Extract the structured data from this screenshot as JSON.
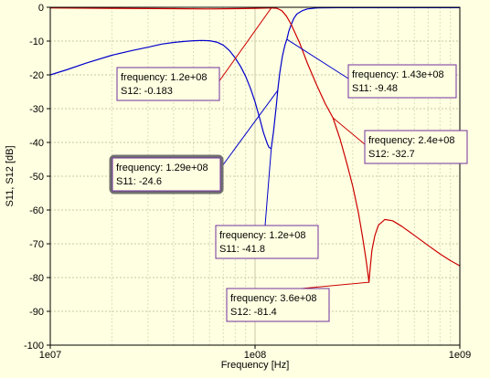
{
  "chart_data": {
    "type": "line",
    "xlabel": "Frequency [Hz]",
    "ylabel": "S11, S12 [dB]",
    "xscale": "log",
    "xlim": [
      10000000,
      1000000000
    ],
    "ylim": [
      -100,
      0
    ],
    "grid": true,
    "x_tick_labels": [
      "1e07",
      "1e08",
      "1e09"
    ],
    "y_ticks": [
      0,
      -10,
      -20,
      -30,
      -40,
      -50,
      -60,
      -70,
      -80,
      -90,
      -100
    ],
    "series": [
      {
        "name": "S11",
        "color": "#0000CC",
        "x": [
          10000000,
          12000000,
          15000000,
          20000000,
          25000000,
          30000000,
          35000000,
          40000000,
          45000000,
          50000000,
          55000000,
          60000000,
          65000000,
          70000000,
          75000000,
          80000000,
          85000000,
          90000000,
          95000000,
          100000000,
          105000000,
          110000000,
          115000000,
          117000000,
          120000000,
          123000000,
          127000000,
          129000000,
          132000000,
          136000000,
          140000000,
          143000000,
          146000000,
          150000000,
          155000000,
          160000000,
          170000000,
          180000000,
          200000000,
          250000000,
          300000000,
          400000000,
          500000000,
          700000000,
          1000000000
        ],
        "y": [
          -20,
          -18.5,
          -16.5,
          -14.2,
          -12.8,
          -11.8,
          -10.9,
          -10.4,
          -10.1,
          -9.9,
          -9.8,
          -9.9,
          -10.3,
          -11.2,
          -12.8,
          -15,
          -17.5,
          -20.5,
          -24,
          -28,
          -32.5,
          -37.2,
          -40.5,
          -41.5,
          -41.8,
          -37,
          -29,
          -24.6,
          -19.5,
          -14.5,
          -11.2,
          -9.48,
          -7.2,
          -5.2,
          -3.2,
          -2,
          -1,
          -0.5,
          -0.2,
          -0.1,
          -0.1,
          -0.1,
          -0.1,
          -0.1,
          -0.1
        ]
      },
      {
        "name": "S12",
        "color": "#CC0000",
        "x": [
          10000000,
          20000000,
          40000000,
          60000000,
          80000000,
          100000000,
          110000000,
          120000000,
          128000000,
          135000000,
          142000000,
          150000000,
          165000000,
          180000000,
          200000000,
          220000000,
          240000000,
          260000000,
          280000000,
          300000000,
          320000000,
          335000000,
          348000000,
          355000000,
          360000000,
          365000000,
          372000000,
          385000000,
          400000000,
          430000000,
          470000000,
          520000000,
          600000000,
          700000000,
          800000000,
          900000000,
          1000000000
        ],
        "y": [
          -0.2,
          -0.3,
          -0.4,
          -0.5,
          -0.4,
          -0.3,
          -0.25,
          -0.183,
          -0.3,
          -1,
          -2.5,
          -5,
          -10.5,
          -16.5,
          -23,
          -28.5,
          -32.7,
          -39,
          -46,
          -53,
          -61,
          -68,
          -74.5,
          -78.5,
          -81.4,
          -77,
          -72,
          -67.5,
          -64.5,
          -62.8,
          -63.2,
          -64.8,
          -67.5,
          -70.5,
          -73,
          -75,
          -76.5
        ]
      }
    ],
    "annotations": [
      {
        "lines": [
          "frequency: 1.2e+08",
          "S12: -0.183"
        ],
        "x": 120000000,
        "y": -0.183,
        "series": "S12"
      },
      {
        "lines": [
          "frequency: 1.43e+08",
          "S11: -9.48"
        ],
        "x": 143000000,
        "y": -9.48,
        "series": "S11"
      },
      {
        "lines": [
          "frequency: 2.4e+08",
          "S12: -32.7"
        ],
        "x": 240000000,
        "y": -32.7,
        "series": "S12"
      },
      {
        "lines": [
          "frequency: 1.29e+08",
          "S11: -24.6"
        ],
        "x": 129000000,
        "y": -24.6,
        "series": "S11",
        "selected": true
      },
      {
        "lines": [
          "frequency: 1.2e+08",
          "S11: -41.8"
        ],
        "x": 120000000,
        "y": -41.8,
        "series": "S11"
      },
      {
        "lines": [
          "frequency: 3.6e+08",
          "S12: -81.4"
        ],
        "x": 360000000,
        "y": -81.4,
        "series": "S12"
      }
    ]
  }
}
